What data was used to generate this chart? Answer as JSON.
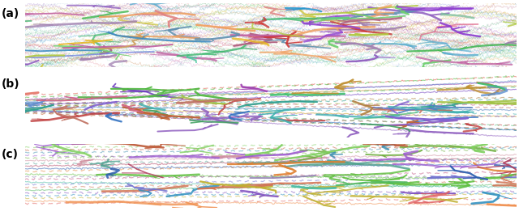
{
  "panels": [
    "(a)",
    "(b)",
    "(c)"
  ],
  "background_color": "#ebebeb",
  "figure_bg": "#ffffff",
  "panel_label_fontsize": 10,
  "panel_label_fontweight": "bold",
  "colors_a": [
    "#e08080",
    "#f0a060",
    "#b0c840",
    "#40b870",
    "#3888c0",
    "#9060c0",
    "#c060a0",
    "#60b0d0",
    "#d0c840",
    "#50c8a0",
    "#c07030",
    "#7080e0",
    "#e07090",
    "#40b850",
    "#9040d0",
    "#cc3030",
    "#e8b820",
    "#2898d0",
    "#70d070",
    "#c870c0",
    "#80c0a0",
    "#a080b0",
    "#d0a060",
    "#6090b0",
    "#b06080"
  ],
  "colors_b": [
    "#9060c0",
    "#c06030",
    "#40a060",
    "#3070c0",
    "#c04040",
    "#60c080",
    "#d0a030",
    "#8060d0",
    "#40b0b0",
    "#c07060",
    "#5080c0",
    "#a0c040",
    "#d06080",
    "#30a090",
    "#b08040",
    "#7040c0",
    "#c09030",
    "#40c070",
    "#a040b0",
    "#6090d0",
    "#e06050",
    "#50b840"
  ],
  "colors_c": [
    "#e06060",
    "#f09050",
    "#c0b030",
    "#3090c0",
    "#8050c0",
    "#50b860",
    "#d07050",
    "#7070d0",
    "#40b8a0",
    "#c05080",
    "#9080b0",
    "#60c040",
    "#e08030",
    "#3060b0",
    "#b04060",
    "#50a090",
    "#d090a0",
    "#70b040",
    "#a060d0",
    "#4090b0",
    "#c06040",
    "#80d060"
  ],
  "seed_a": 42,
  "seed_b": 7,
  "seed_c": 99
}
